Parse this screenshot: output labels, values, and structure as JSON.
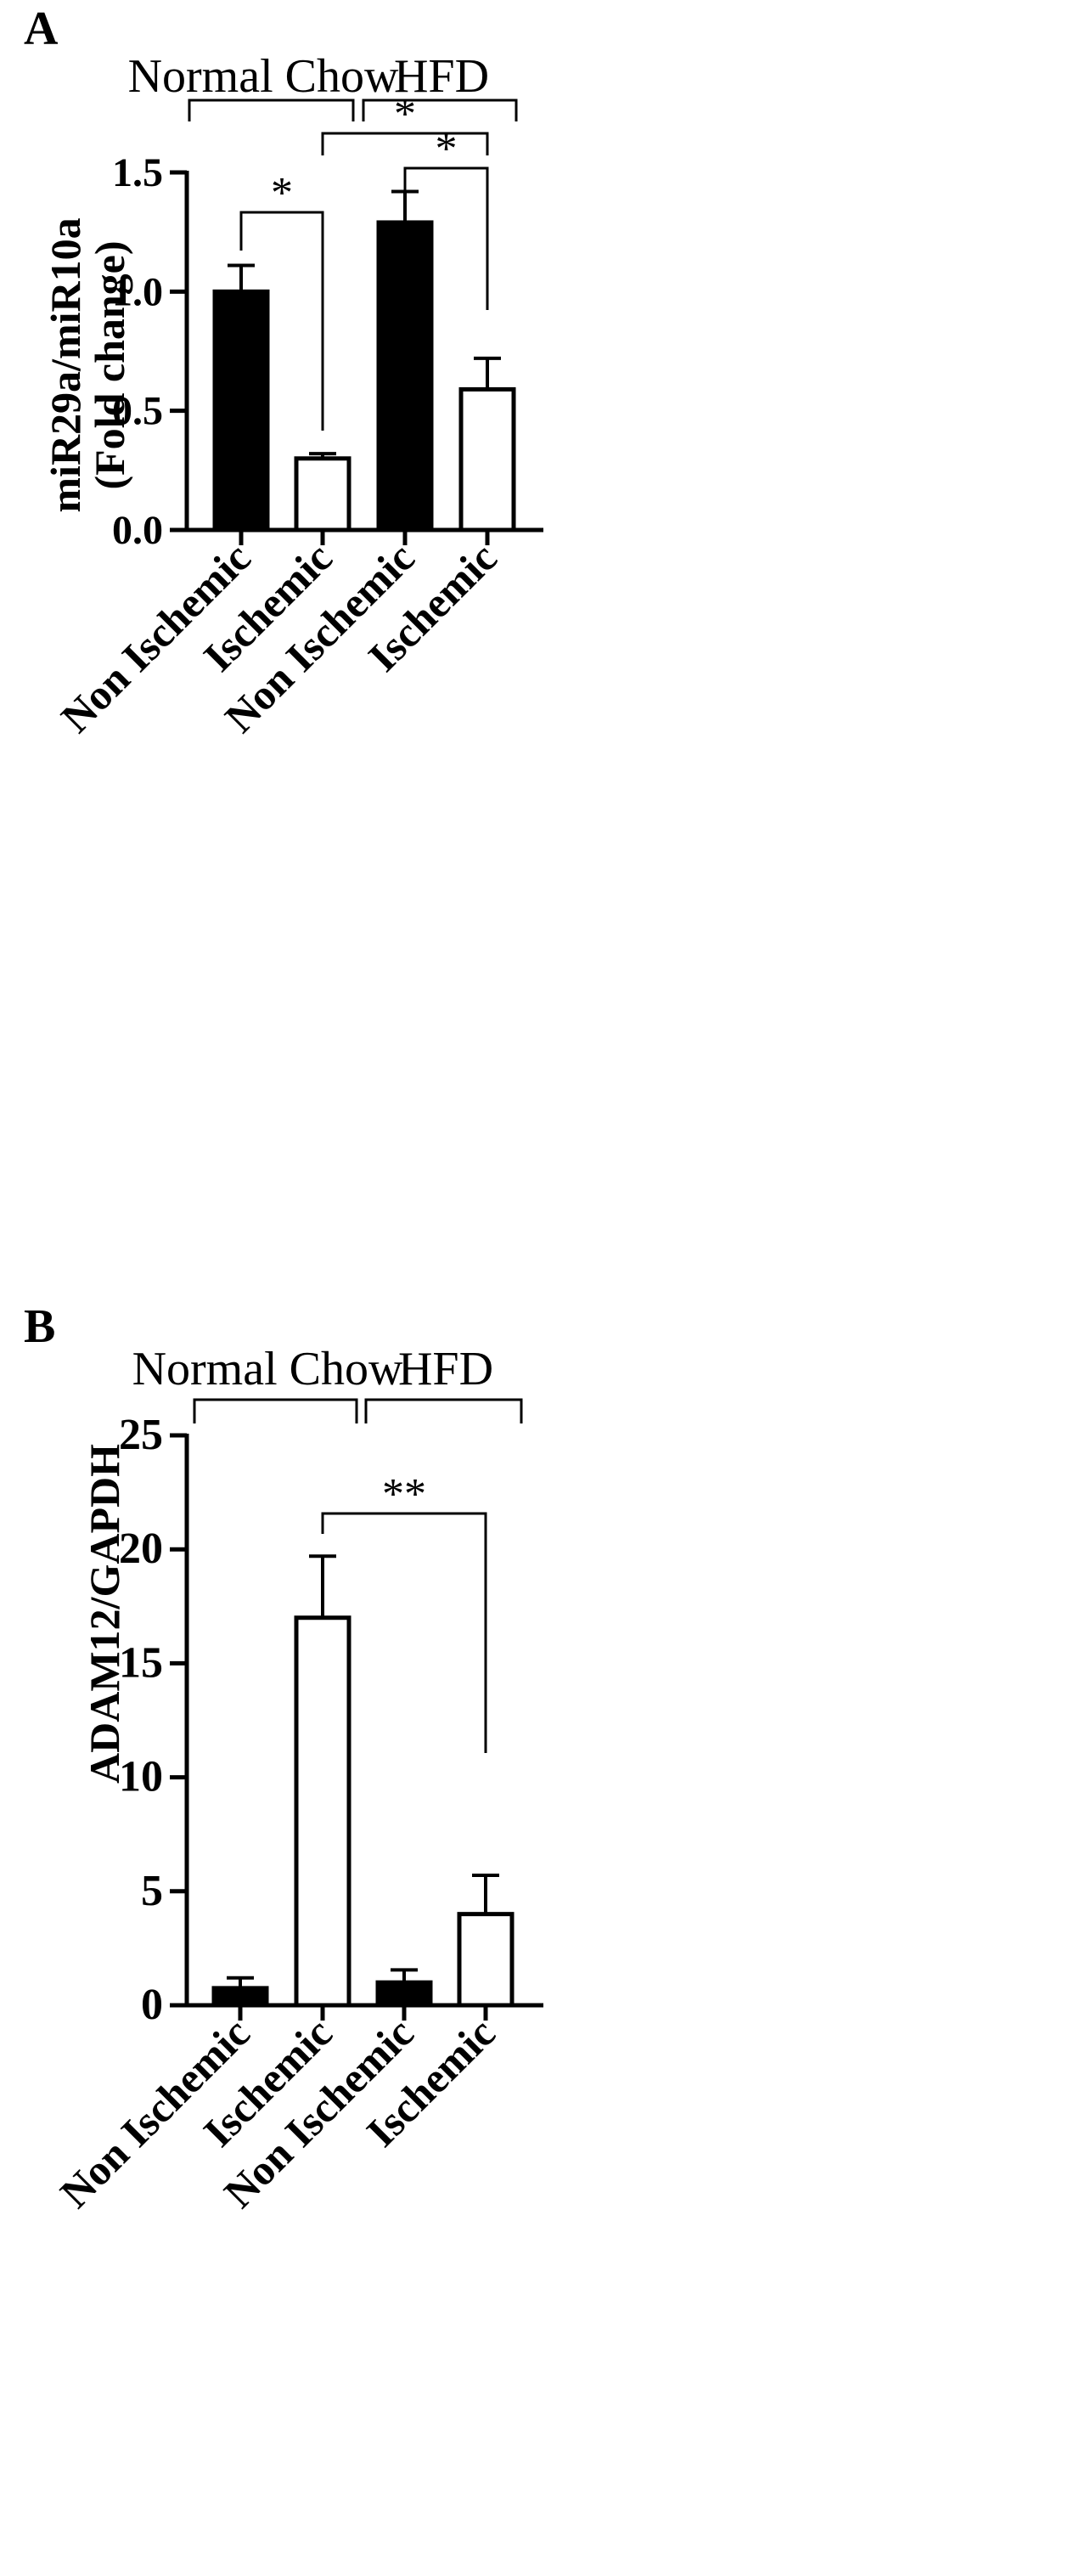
{
  "chart_data": [
    {
      "type": "bar",
      "panel": "A",
      "categories": [
        "Non Ischemic",
        "Ischemic",
        "Non Ischemic",
        "Ischemic"
      ],
      "groups": [
        "Normal Chow",
        "HFD"
      ],
      "ylabel_line1": "miR29a/miR10a",
      "ylabel_line2": "(Fold change)",
      "ylim": [
        0,
        1.5
      ],
      "yticks": [
        "0.0",
        "0.5",
        "1.0",
        "1.5"
      ],
      "ytick_values": [
        0,
        0.5,
        1.0,
        1.5
      ],
      "values": [
        1.0,
        0.3,
        1.29,
        0.59
      ],
      "errors": [
        0.11,
        0.02,
        0.13,
        0.13
      ],
      "fills": [
        "#000000",
        "#ffffff",
        "#000000",
        "#ffffff"
      ],
      "significance": [
        {
          "from": 0,
          "to": 1,
          "label": "*"
        },
        {
          "from": 2,
          "to": 3,
          "label": "*"
        },
        {
          "from": 1,
          "to": 3,
          "label": "*"
        }
      ]
    },
    {
      "type": "bar",
      "panel": "B",
      "categories": [
        "Non Ischemic",
        "Ischemic",
        "Non Ischemic",
        "Ischemic"
      ],
      "groups": [
        "Normal Chow",
        "HFD"
      ],
      "ylabel": "ADAM12/GAPDH",
      "ylim": [
        0,
        25
      ],
      "yticks": [
        "0",
        "5",
        "10",
        "15",
        "20",
        "25"
      ],
      "ytick_values": [
        0,
        5,
        10,
        15,
        20,
        25
      ],
      "values": [
        0.75,
        17.0,
        1.0,
        4.0
      ],
      "errors": [
        0.45,
        2.7,
        0.55,
        1.7
      ],
      "fills": [
        "#000000",
        "#ffffff",
        "#000000",
        "#ffffff"
      ],
      "significance": [
        {
          "from": 1,
          "to": 3,
          "label": "**"
        }
      ]
    }
  ]
}
